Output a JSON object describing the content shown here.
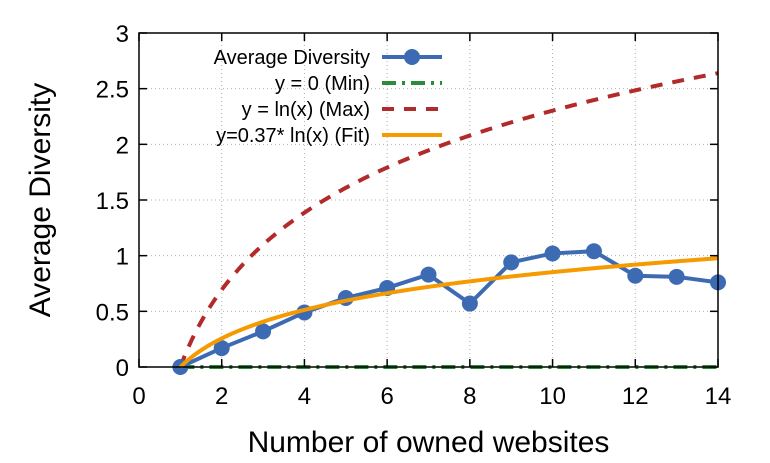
{
  "chart_data": {
    "type": "line",
    "xlabel": "Number of owned websites",
    "ylabel": "Average Diversity",
    "xlim": [
      0,
      14
    ],
    "ylim": [
      0,
      3
    ],
    "x_ticks": [
      "0",
      "2",
      "4",
      "6",
      "8",
      "10",
      "12",
      "14"
    ],
    "y_ticks": [
      "0",
      "0.5",
      "1",
      "1.5",
      "2",
      "2.5",
      "3"
    ],
    "grid": true,
    "legend_position": "top-left",
    "series": [
      {
        "name": "Average Diversity",
        "kind": "line-markers",
        "color": "#3d6bb3",
        "x": [
          1,
          2,
          3,
          4,
          5,
          6,
          7,
          8,
          9,
          10,
          11,
          12,
          13,
          14
        ],
        "y": [
          0.0,
          0.17,
          0.32,
          0.49,
          0.62,
          0.71,
          0.83,
          0.57,
          0.94,
          1.02,
          1.04,
          0.82,
          0.81,
          0.76
        ]
      },
      {
        "name": "y = 0 (Min)",
        "kind": "function",
        "function": "0",
        "color": "#2e8b3a",
        "dash": "dash-dot"
      },
      {
        "name": "y = ln(x) (Max)",
        "kind": "function",
        "function": "ln(x)",
        "color": "#b22a2a",
        "dash": "dash"
      },
      {
        "name": "y=0.37* ln(x) (Fit)",
        "kind": "function",
        "function": "0.37*ln(x)",
        "color": "#f59a00",
        "dash": "solid"
      }
    ]
  }
}
